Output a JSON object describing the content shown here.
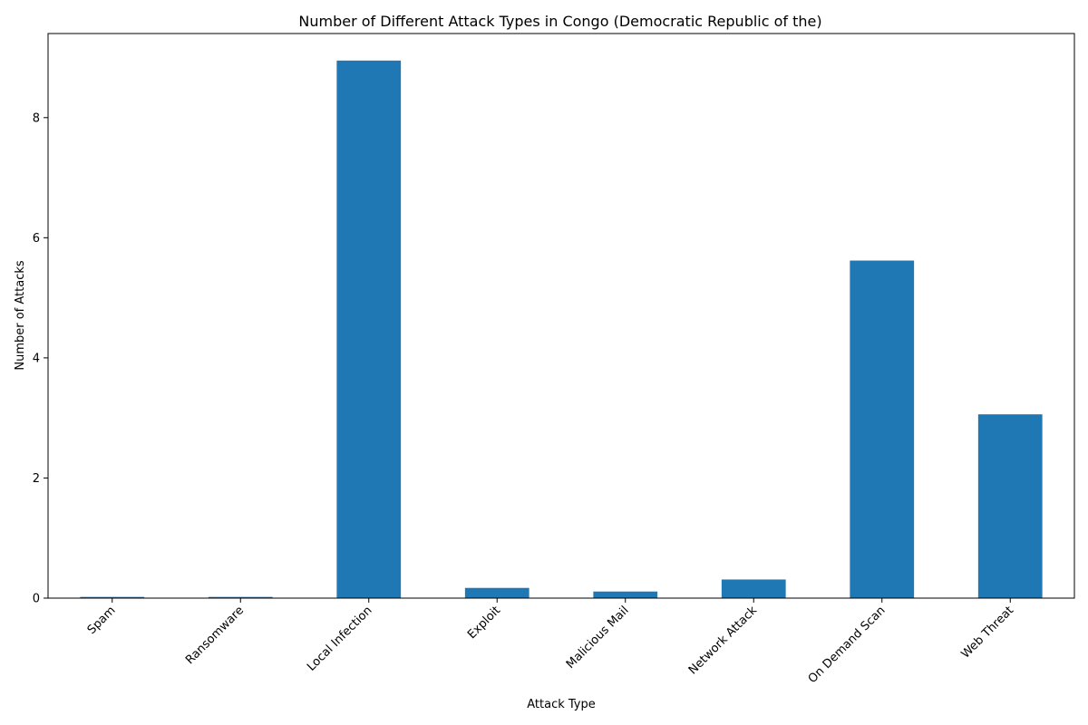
{
  "chart_data": {
    "type": "bar",
    "title": "Number of Different Attack Types in Congo (Democratic Republic of the)",
    "xlabel": "Attack Type",
    "ylabel": "Number of Attacks",
    "categories": [
      "Spam",
      "Ransomware",
      "Local Infection",
      "Exploit",
      "Malicious Mail",
      "Network Attack",
      "On Demand Scan",
      "Web Threat"
    ],
    "values": [
      0.02,
      0.02,
      8.95,
      0.17,
      0.11,
      0.31,
      5.62,
      3.06
    ],
    "ylim": [
      0,
      9.4
    ],
    "yticks": [
      0,
      2,
      4,
      6,
      8
    ],
    "bar_color": "#1f77b4",
    "grid": false,
    "legend": "none"
  }
}
